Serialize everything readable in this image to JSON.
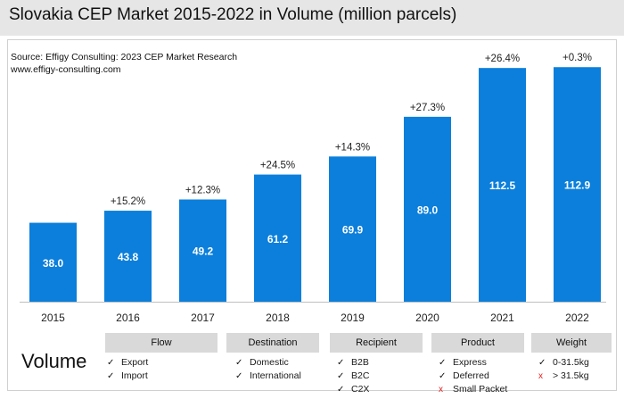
{
  "title": "Slovakia CEP Market 2015-2022 in Volume (million parcels)",
  "source_line": "Source: Effigy Consulting: 2023 CEP Market Research",
  "website": "www.effigy-consulting.com",
  "colors": {
    "bar": "#0b7fdb",
    "label_text": "#ffffff",
    "title_band": "#e6e6e6",
    "category_box": "#d9d9d9",
    "cross": "#e02020"
  },
  "chart_data": {
    "type": "bar",
    "title": "Slovakia CEP Market 2015-2022 in Volume (million parcels)",
    "categories": [
      "2015",
      "2016",
      "2017",
      "2018",
      "2019",
      "2020",
      "2021",
      "2022"
    ],
    "values": [
      38.0,
      43.8,
      49.2,
      61.2,
      69.9,
      89.0,
      112.5,
      112.9
    ],
    "value_labels": [
      "38.0",
      "43.8",
      "49.2",
      "61.2",
      "69.9",
      "89.0",
      "112.5",
      "112.9"
    ],
    "growth_labels": [
      "",
      "+15.2%",
      "+12.3%",
      "+24.5%",
      "+14.3%",
      "+27.3%",
      "+26.4%",
      "+0.3%"
    ],
    "xlabel": "",
    "ylabel": "",
    "ylim": [
      0,
      113
    ]
  },
  "legend": {
    "heading": "Volume",
    "categories": [
      {
        "name": "Flow",
        "items": [
          {
            "mark": "✓",
            "included": true,
            "label": "Export"
          },
          {
            "mark": "✓",
            "included": true,
            "label": "Import"
          }
        ]
      },
      {
        "name": "Destination",
        "items": [
          {
            "mark": "✓",
            "included": true,
            "label": "Domestic"
          },
          {
            "mark": "✓",
            "included": true,
            "label": "International"
          }
        ]
      },
      {
        "name": "Recipient",
        "items": [
          {
            "mark": "✓",
            "included": true,
            "label": "B2B"
          },
          {
            "mark": "✓",
            "included": true,
            "label": "B2C"
          },
          {
            "mark": "✓",
            "included": true,
            "label": "C2X"
          }
        ]
      },
      {
        "name": "Product",
        "items": [
          {
            "mark": "✓",
            "included": true,
            "label": "Express"
          },
          {
            "mark": "✓",
            "included": true,
            "label": "Deferred"
          },
          {
            "mark": "x",
            "included": false,
            "label": "Small Packet"
          }
        ]
      },
      {
        "name": "Weight",
        "items": [
          {
            "mark": "✓",
            "included": true,
            "label": "0-31.5kg"
          },
          {
            "mark": "x",
            "included": false,
            "label": "> 31.5kg"
          }
        ]
      }
    ]
  }
}
